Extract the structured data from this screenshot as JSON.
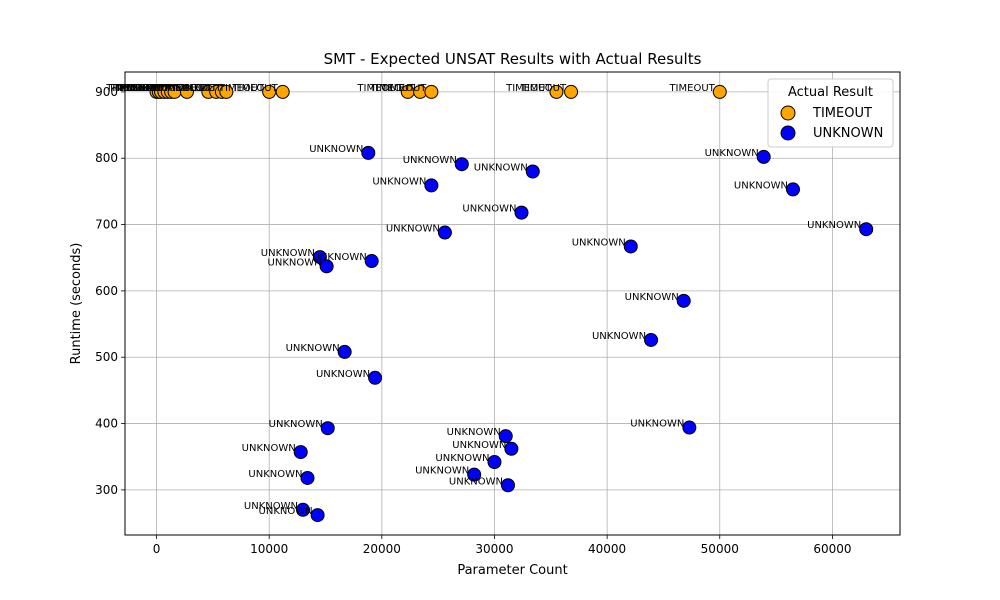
{
  "chart_data": {
    "type": "scatter",
    "title": "SMT - Expected UNSAT Results with Actual Results",
    "xlabel": "Parameter Count",
    "ylabel": "Runtime (seconds)",
    "xlim": [
      -2800,
      66000
    ],
    "ylim": [
      232,
      930
    ],
    "xticks": [
      0,
      10000,
      20000,
      30000,
      40000,
      50000,
      60000
    ],
    "yticks": [
      300,
      400,
      500,
      600,
      700,
      800,
      900
    ],
    "grid": true,
    "legend": {
      "title": "Actual Result",
      "placement": "top-right"
    },
    "series": [
      {
        "name": "TIMEOUT",
        "color": "#FFA500",
        "points": [
          {
            "x": 0,
            "y": 900,
            "label": "TIMEOUT"
          },
          {
            "x": 200,
            "y": 900,
            "label": "TIMEOUT"
          },
          {
            "x": 400,
            "y": 900,
            "label": "TIMEOUT"
          },
          {
            "x": 700,
            "y": 900,
            "label": "TIMEOUT"
          },
          {
            "x": 1000,
            "y": 900,
            "label": "TIMEOUT"
          },
          {
            "x": 1300,
            "y": 900,
            "label": "TIMEOUT"
          },
          {
            "x": 1600,
            "y": 900,
            "label": "TIMEOUT"
          },
          {
            "x": 2700,
            "y": 900,
            "label": "TIMEOUT"
          },
          {
            "x": 4600,
            "y": 900,
            "label": "TIMEOUT"
          },
          {
            "x": 5300,
            "y": 900,
            "label": "TIMEOUT"
          },
          {
            "x": 5800,
            "y": 900,
            "label": "TIMEOUT"
          },
          {
            "x": 6200,
            "y": 900,
            "label": "TIMEOUT"
          },
          {
            "x": 10000,
            "y": 900,
            "label": "TIMEOUT"
          },
          {
            "x": 11200,
            "y": 900,
            "label": "TIMEOUT"
          },
          {
            "x": 22300,
            "y": 900,
            "label": "TIMEOUT"
          },
          {
            "x": 23400,
            "y": 900,
            "label": "TIMEOUT"
          },
          {
            "x": 24400,
            "y": 900,
            "label": "TIMEOUT"
          },
          {
            "x": 35500,
            "y": 900,
            "label": "TIMEOUT"
          },
          {
            "x": 36800,
            "y": 900,
            "label": "TIMEOUT"
          },
          {
            "x": 50000,
            "y": 900,
            "label": "TIMEOUT"
          }
        ]
      },
      {
        "name": "UNKNOWN",
        "color": "#0000FF",
        "points": [
          {
            "x": 18800,
            "y": 808,
            "label": "UNKNOWN"
          },
          {
            "x": 27100,
            "y": 791,
            "label": "UNKNOWN"
          },
          {
            "x": 33400,
            "y": 780,
            "label": "UNKNOWN"
          },
          {
            "x": 53900,
            "y": 802,
            "label": "UNKNOWN"
          },
          {
            "x": 24400,
            "y": 759,
            "label": "UNKNOWN"
          },
          {
            "x": 56500,
            "y": 753,
            "label": "UNKNOWN"
          },
          {
            "x": 32400,
            "y": 718,
            "label": "UNKNOWN"
          },
          {
            "x": 25600,
            "y": 688,
            "label": "UNKNOWN"
          },
          {
            "x": 63000,
            "y": 693,
            "label": "UNKNOWN"
          },
          {
            "x": 42100,
            "y": 667,
            "label": "UNKNOWN"
          },
          {
            "x": 14500,
            "y": 651,
            "label": "UNKNOWN"
          },
          {
            "x": 19100,
            "y": 645,
            "label": "UNKNOWN"
          },
          {
            "x": 15100,
            "y": 637,
            "label": "UNKNOWN"
          },
          {
            "x": 46800,
            "y": 585,
            "label": "UNKNOWN"
          },
          {
            "x": 43900,
            "y": 526,
            "label": "UNKNOWN"
          },
          {
            "x": 16700,
            "y": 508,
            "label": "UNKNOWN"
          },
          {
            "x": 19400,
            "y": 469,
            "label": "UNKNOWN"
          },
          {
            "x": 15200,
            "y": 393,
            "label": "UNKNOWN"
          },
          {
            "x": 47300,
            "y": 394,
            "label": "UNKNOWN"
          },
          {
            "x": 31000,
            "y": 381,
            "label": "UNKNOWN"
          },
          {
            "x": 31500,
            "y": 362,
            "label": "UNKNOWN"
          },
          {
            "x": 12800,
            "y": 357,
            "label": "UNKNOWN"
          },
          {
            "x": 30000,
            "y": 342,
            "label": "UNKNOWN"
          },
          {
            "x": 28200,
            "y": 323,
            "label": "UNKNOWN"
          },
          {
            "x": 13400,
            "y": 318,
            "label": "UNKNOWN"
          },
          {
            "x": 31200,
            "y": 307,
            "label": "UNKNOWN"
          },
          {
            "x": 13000,
            "y": 270,
            "label": "UNKNOWN"
          },
          {
            "x": 14300,
            "y": 262,
            "label": "UNKNOWN"
          }
        ]
      }
    ]
  }
}
